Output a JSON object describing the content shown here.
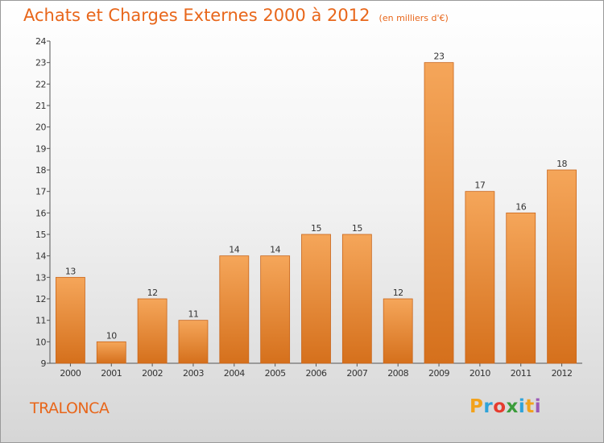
{
  "header": {
    "title": "Achats et Charges Externes 2000 à 2012",
    "subtitle": "(en milliers d'€)"
  },
  "footer": {
    "town": "TRALONCA",
    "logo": {
      "letters": [
        "P",
        "r",
        "o",
        "x",
        "i",
        "t",
        "i"
      ],
      "colors": [
        "#f2a21c",
        "#2fa3d9",
        "#e63b2e",
        "#3b9c3a",
        "#2fa3d9",
        "#f2a21c",
        "#9b59b6"
      ]
    }
  },
  "colors": {
    "bar_top": "#f5a65a",
    "bar_bottom": "#d5701c",
    "bar_edge": "#c9651a",
    "accent": "#e8661a"
  },
  "chart_data": {
    "type": "bar",
    "title": "Achats et Charges Externes 2000 à 2012",
    "subtitle": "(en milliers d'€)",
    "xlabel": "",
    "ylabel": "",
    "categories": [
      "2000",
      "2001",
      "2002",
      "2003",
      "2004",
      "2005",
      "2006",
      "2007",
      "2008",
      "2009",
      "2010",
      "2011",
      "2012"
    ],
    "values": [
      13,
      10,
      12,
      11,
      14,
      14,
      15,
      15,
      12,
      23,
      17,
      16,
      18
    ],
    "ylim": [
      9,
      24
    ],
    "yticks": [
      9,
      10,
      11,
      12,
      13,
      14,
      15,
      16,
      17,
      18,
      19,
      20,
      21,
      22,
      23,
      24
    ],
    "grid": false,
    "legend": "none"
  }
}
